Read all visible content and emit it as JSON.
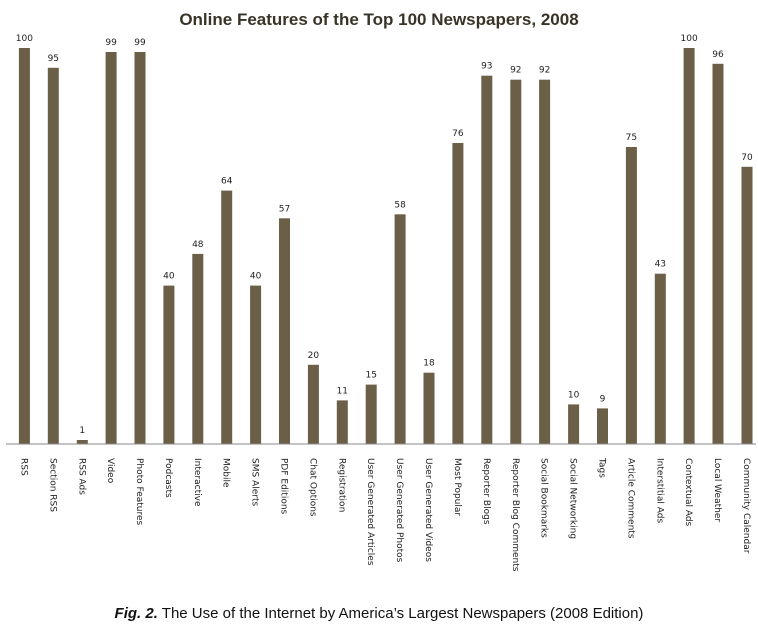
{
  "chart_data": {
    "type": "bar",
    "title": "Online Features of the Top 100 Newspapers, 2008",
    "xlabel": "",
    "ylabel": "",
    "ylim": [
      0,
      100
    ],
    "grid": false,
    "bar_color": "#6b5f47",
    "categories": [
      "RSS",
      "Section RSS",
      "RSS Ads",
      "Video",
      "Photo Features",
      "Podcasts",
      "Interactive",
      "Mobile",
      "SMS Alerts",
      "PDF Editions",
      "Chat Options",
      "Registration",
      "User Generated Articles",
      "User Generated Photos",
      "User Generated Videos",
      "Most Popular",
      "Reporter Blogs",
      "Reporter Blog Comments",
      "Social Bookmarks",
      "Social Networking",
      "Tags",
      "Article Comments",
      "Interstitial Ads",
      "Contextual Ads",
      "Local Weather",
      "Community Calendar"
    ],
    "values": [
      100,
      95,
      1,
      99,
      99,
      40,
      48,
      64,
      40,
      57,
      20,
      11,
      15,
      58,
      18,
      76,
      93,
      92,
      92,
      10,
      9,
      75,
      43,
      100,
      96,
      70
    ]
  },
  "caption": {
    "figure_label": "Fig. 2.",
    "text": " The Use of the Internet by America’s Largest Newspapers (2008 Edition)"
  }
}
